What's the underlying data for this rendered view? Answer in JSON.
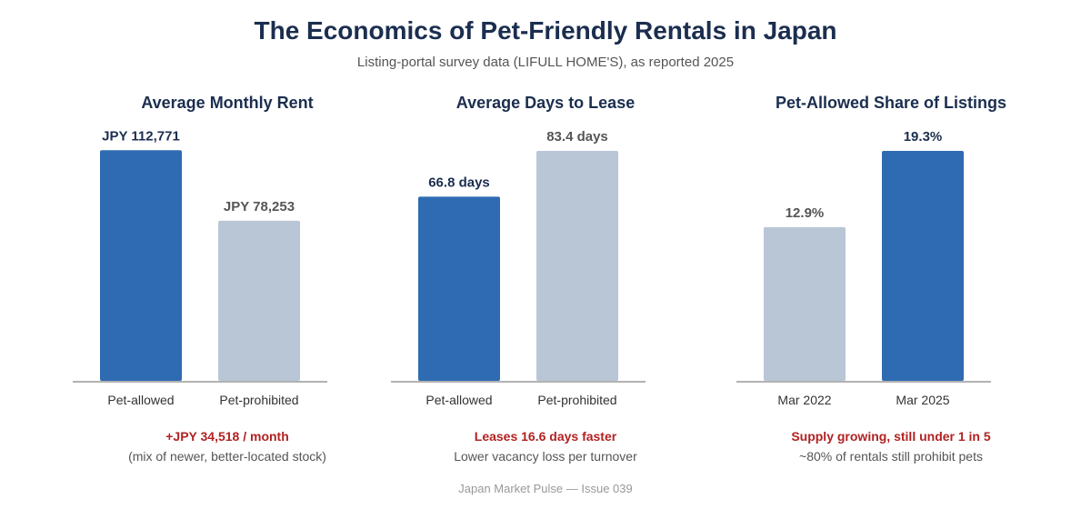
{
  "page": {
    "title": "The Economics of Pet-Friendly Rentals in Japan",
    "subtitle": "Listing-portal survey data (LIFULL HOME'S), as reported 2025",
    "footer": "Japan Market Pulse — Issue 039"
  },
  "colors": {
    "highlight": "#2f6bb2",
    "muted": "#b9c6d6",
    "headline": "#b22222",
    "title": "#1b2e4f"
  },
  "chart_data": [
    {
      "type": "bar",
      "title": "Average Monthly Rent",
      "categories": [
        "Pet-allowed",
        "Pet-prohibited"
      ],
      "values": [
        112771,
        78253
      ],
      "value_labels": [
        "JPY 112,771",
        "JPY 78,253"
      ],
      "highlight": [
        true,
        false
      ],
      "ylim": [
        0,
        120000
      ],
      "headline": "+JPY 34,518 / month",
      "note": "(mix of newer, better-located stock)"
    },
    {
      "type": "bar",
      "title": "Average Days to Lease",
      "categories": [
        "Pet-allowed",
        "Pet-prohibited"
      ],
      "values": [
        66.8,
        83.4
      ],
      "value_labels": [
        "66.8 days",
        "83.4 days"
      ],
      "highlight": [
        true,
        false
      ],
      "ylim": [
        0,
        89
      ],
      "headline": "Leases 16.6 days faster",
      "note": "Lower vacancy loss per turnover"
    },
    {
      "type": "bar",
      "title": "Pet-Allowed Share of Listings",
      "categories": [
        "Mar 2022",
        "Mar 2025"
      ],
      "values": [
        12.9,
        19.3
      ],
      "value_labels": [
        "12.9%",
        "19.3%"
      ],
      "highlight": [
        false,
        true
      ],
      "ylim": [
        0,
        20.6
      ],
      "headline": "Supply growing, still under 1 in 5",
      "note": "~80% of rentals still prohibit pets"
    }
  ]
}
